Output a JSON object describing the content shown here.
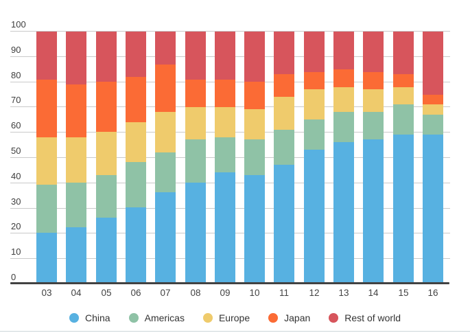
{
  "chart_data": {
    "type": "bar",
    "stacked": true,
    "stacked_unit": "percent",
    "title": "",
    "xlabel": "",
    "ylabel": "",
    "categories": [
      "03",
      "04",
      "05",
      "06",
      "07",
      "08",
      "09",
      "10",
      "11",
      "12",
      "13",
      "14",
      "15",
      "16"
    ],
    "series": [
      {
        "name": "China",
        "color": "#57b1e1",
        "values": [
          20,
          22,
          26,
          30,
          36,
          40,
          44,
          43,
          47,
          53,
          56,
          57,
          59,
          59
        ]
      },
      {
        "name": "Americas",
        "color": "#8fc2a6",
        "values": [
          19,
          18,
          17,
          18,
          16,
          17,
          14,
          14,
          14,
          12,
          12,
          11,
          12,
          8
        ]
      },
      {
        "name": "Europe",
        "color": "#efcb6c",
        "values": [
          19,
          18,
          17,
          16,
          16,
          13,
          12,
          12,
          13,
          12,
          10,
          9,
          7,
          4
        ]
      },
      {
        "name": "Japan",
        "color": "#fb6b35",
        "values": [
          23,
          21,
          20,
          18,
          19,
          11,
          11,
          11,
          9,
          7,
          7,
          7,
          5,
          4
        ]
      },
      {
        "name": "Rest of world",
        "color": "#d7555c",
        "values": [
          19,
          21,
          20,
          18,
          13,
          19,
          19,
          20,
          17,
          16,
          15,
          16,
          17,
          25
        ]
      }
    ],
    "ylim": [
      0,
      100
    ],
    "yticks": [
      0,
      10,
      20,
      30,
      40,
      50,
      60,
      70,
      80,
      90,
      100
    ],
    "grid": true,
    "legend_position": "bottom"
  },
  "legend": {
    "items": [
      "China",
      "Americas",
      "Europe",
      "Japan",
      "Rest of world"
    ]
  },
  "colors": {
    "background": "#ffffff",
    "gridline": "#c9c9c9",
    "axis_line": "#424242",
    "tick_label": "#3d3d3d",
    "legend_text": "#333333",
    "divider": "#ccd6da"
  }
}
